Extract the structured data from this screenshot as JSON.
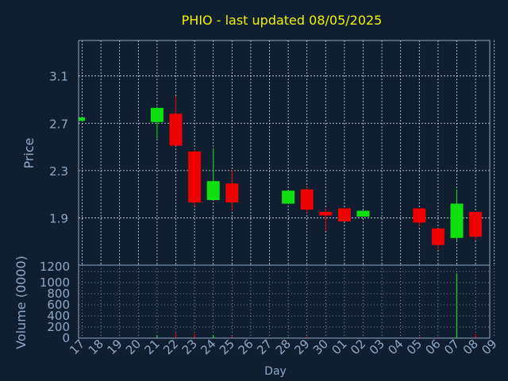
{
  "colors": {
    "background": "#0f1e30",
    "plot_background": "#0f1e30",
    "grid": "#d8e0ea",
    "axis_text": "#8ea9c7",
    "title": "#f2f200",
    "up": "#10e010",
    "down": "#ee0000",
    "wick": "#ee0000"
  },
  "chart_data": {
    "type": "candlestick",
    "title": "PHIO - last updated 08/05/2025",
    "xlabel": "Day",
    "price_label": "Price",
    "volume_label": "Volume (0000)",
    "grid": true,
    "price_ticks": [
      "1.9",
      "2.3",
      "2.7",
      "3.1"
    ],
    "price_ylim": [
      1.5,
      3.4
    ],
    "volume_ticks": [
      "0",
      "200",
      "400",
      "600",
      "800",
      "1000",
      "1200"
    ],
    "volume_ylim": [
      0,
      1200
    ],
    "day_labels": [
      "17",
      "18",
      "19",
      "20",
      "21",
      "22",
      "23",
      "24",
      "25",
      "26",
      "27",
      "28",
      "29",
      "30",
      "01",
      "02",
      "03",
      "04",
      "05",
      "06",
      "07",
      "08",
      "09"
    ],
    "candles": [
      {
        "day": "17",
        "open": 2.72,
        "close": 2.75,
        "high": 2.75,
        "low": 2.72,
        "volume": 4
      },
      {
        "day": "21",
        "open": 2.71,
        "close": 2.83,
        "high": 2.84,
        "low": 2.57,
        "volume": 45
      },
      {
        "day": "22",
        "open": 2.78,
        "close": 2.51,
        "high": 2.93,
        "low": 2.51,
        "volume": 85
      },
      {
        "day": "23",
        "open": 2.46,
        "close": 2.03,
        "high": 2.48,
        "low": 2.0,
        "volume": 80
      },
      {
        "day": "24",
        "open": 2.05,
        "close": 2.21,
        "high": 2.49,
        "low": 2.05,
        "volume": 50
      },
      {
        "day": "25",
        "open": 2.19,
        "close": 2.03,
        "high": 2.3,
        "low": 1.96,
        "volume": 40
      },
      {
        "day": "28",
        "open": 2.02,
        "close": 2.13,
        "high": 2.13,
        "low": 2.02,
        "volume": 20
      },
      {
        "day": "29",
        "open": 2.14,
        "close": 1.97,
        "high": 2.16,
        "low": 1.94,
        "volume": 30
      },
      {
        "day": "30",
        "open": 1.95,
        "close": 1.92,
        "high": 1.98,
        "low": 1.79,
        "volume": 15
      },
      {
        "day": "01",
        "open": 1.98,
        "close": 1.87,
        "high": 1.98,
        "low": 1.87,
        "volume": 15
      },
      {
        "day": "02",
        "open": 1.91,
        "close": 1.96,
        "high": 1.96,
        "low": 1.91,
        "volume": 10
      },
      {
        "day": "05",
        "open": 1.98,
        "close": 1.86,
        "high": 1.98,
        "low": 1.83,
        "volume": 25
      },
      {
        "day": "06",
        "open": 1.81,
        "close": 1.67,
        "high": 1.81,
        "low": 1.63,
        "volume": 20
      },
      {
        "day": "07",
        "open": 1.73,
        "close": 2.02,
        "high": 2.14,
        "low": 1.71,
        "volume": 1165
      },
      {
        "day": "08",
        "open": 1.95,
        "close": 1.74,
        "high": 1.95,
        "low": 1.71,
        "volume": 70
      }
    ]
  }
}
